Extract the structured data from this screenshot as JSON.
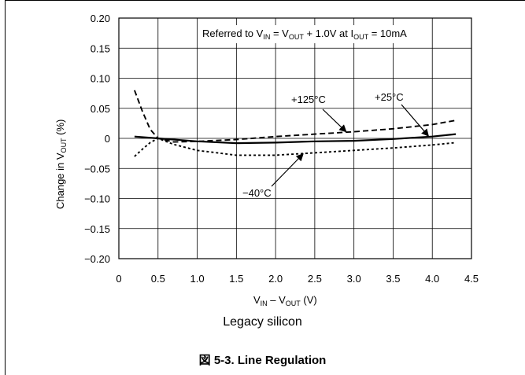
{
  "chart_data": {
    "type": "line",
    "x_range": [
      0,
      4.5
    ],
    "y_range": [
      -0.2,
      0.2
    ],
    "x_ticks": [
      "0",
      "0.5",
      "1.0",
      "1.5",
      "2.0",
      "2.5",
      "3.0",
      "3.5",
      "4.0",
      "4.5"
    ],
    "y_ticks": [
      "0.20",
      "0.15",
      "0.10",
      "0.05",
      "0",
      "−0.05",
      "−0.10",
      "−0.15",
      "−0.20"
    ],
    "grid": true,
    "ylabel": {
      "pre": "Change in V",
      "sub": "OUT",
      "post": " (%)"
    },
    "xlabel": {
      "a": "V",
      "a_sub": "IN",
      "mid": " – V",
      "b_sub": "OUT",
      "post": " (V)"
    },
    "note": {
      "t1": "Referred to V",
      "s1": "IN",
      "t2": " = V",
      "s2": "OUT",
      "t3": " + 1.0V at I",
      "s3": "OUT",
      "t4": " = 10mA"
    },
    "series": [
      {
        "name": "+25°C",
        "style": "solid",
        "x": [
          0.2,
          0.5,
          1.0,
          1.5,
          2.0,
          2.5,
          3.0,
          3.5,
          4.0,
          4.3
        ],
        "y": [
          0.003,
          0.0,
          -0.005,
          -0.008,
          -0.007,
          -0.005,
          -0.004,
          -0.001,
          0.003,
          0.007
        ]
      },
      {
        "name": "+125°C",
        "style": "dashed",
        "x": [
          0.2,
          0.3,
          0.4,
          0.5,
          0.7,
          1.0,
          1.5,
          2.0,
          2.5,
          3.0,
          3.5,
          4.0,
          4.3
        ],
        "y": [
          0.08,
          0.045,
          0.015,
          0.0,
          -0.006,
          -0.005,
          -0.002,
          0.003,
          0.007,
          0.011,
          0.016,
          0.023,
          0.03
        ]
      },
      {
        "name": "−40°C",
        "style": "dotted",
        "x": [
          0.2,
          0.3,
          0.4,
          0.5,
          0.7,
          1.0,
          1.5,
          2.0,
          2.5,
          3.0,
          3.5,
          4.0,
          4.3
        ],
        "y": [
          -0.03,
          -0.018,
          -0.007,
          0.0,
          -0.01,
          -0.02,
          -0.028,
          -0.028,
          -0.024,
          -0.02,
          -0.016,
          -0.011,
          -0.007
        ]
      }
    ],
    "annotations": [
      {
        "text": "+125°C",
        "points_to": "+125°C"
      },
      {
        "text": "+25°C",
        "points_to": "+25°C"
      },
      {
        "text": "−40°C",
        "points_to": "−40°C"
      }
    ]
  },
  "caption": "Legacy silicon",
  "figure_title": "図 5-3. Line Regulation"
}
